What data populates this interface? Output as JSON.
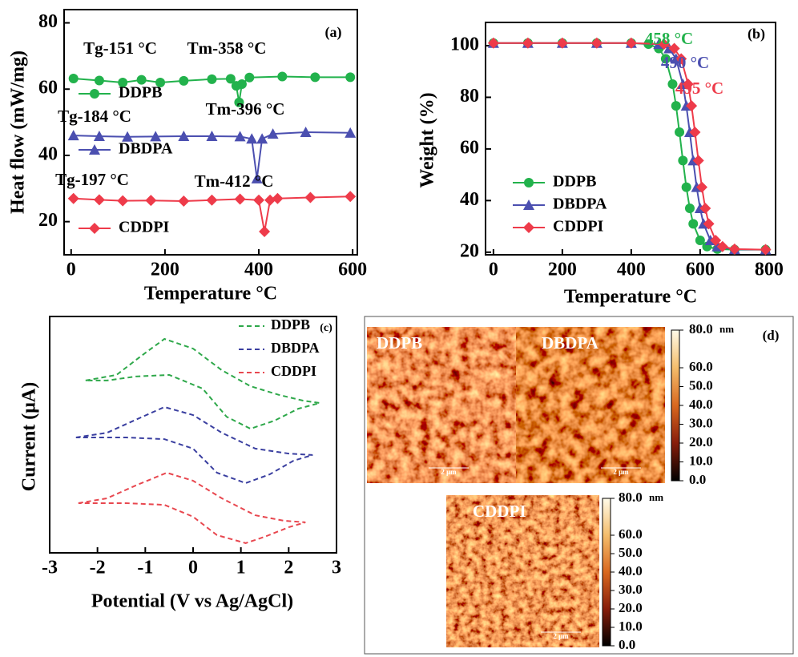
{
  "chart_data": [
    {
      "type": "line",
      "panel_label": "(a)",
      "xlabel": "Temperature °C",
      "ylabel": "Heat flow (mW/mg)",
      "xlim": [
        -15,
        610
      ],
      "xticks": [
        0,
        200,
        400,
        600
      ],
      "ylim": [
        10,
        84
      ],
      "yticks": [
        20,
        40,
        60,
        80
      ],
      "linestyle": "solid",
      "annotations": [
        {
          "text": "Tg-151 °C"
        },
        {
          "text": "Tm-358 °C"
        },
        {
          "text": "Tg-184 °C"
        },
        {
          "text": "Tm-396 °C"
        },
        {
          "text": "Tg-197 °C"
        },
        {
          "text": "Tm-412 °C"
        }
      ],
      "series": [
        {
          "name": "DDPB",
          "color": "#22b24c",
          "marker": "circle",
          "x": [
            5,
            60,
            110,
            150,
            190,
            240,
            300,
            340,
            352,
            358,
            364,
            380,
            450,
            520,
            595
          ],
          "values": [
            63.2,
            62.6,
            62.0,
            62.8,
            62.0,
            62.5,
            63.0,
            63.1,
            61,
            56,
            61.5,
            63.5,
            63.8,
            63.6,
            63.6
          ]
        },
        {
          "name": "DBDPA",
          "color": "#4b4fb0",
          "marker": "triangle",
          "x": [
            5,
            60,
            120,
            180,
            240,
            300,
            360,
            385,
            396,
            407,
            430,
            500,
            595
          ],
          "values": [
            46,
            45.8,
            45.6,
            45.7,
            45.8,
            45.8,
            45.7,
            45,
            33,
            45,
            46.5,
            47,
            46.8
          ]
        },
        {
          "name": "CDDPI",
          "color": "#ee3b4a",
          "marker": "diamond",
          "x": [
            5,
            60,
            110,
            170,
            240,
            300,
            360,
            400,
            412,
            424,
            440,
            510,
            595
          ],
          "values": [
            27,
            26.6,
            26.3,
            26.4,
            26.2,
            26.5,
            26.8,
            26.5,
            17,
            26.5,
            27,
            27.3,
            27.6
          ]
        }
      ]
    },
    {
      "type": "line",
      "panel_label": "(b)",
      "xlabel": "Temperature °C",
      "ylabel": "Weight (%)",
      "xlim": [
        -23,
        819
      ],
      "xticks": [
        0,
        200,
        400,
        600,
        800
      ],
      "ylim": [
        19,
        109
      ],
      "yticks": [
        20,
        40,
        60,
        80,
        100
      ],
      "linestyle": "solid",
      "annotations": [
        {
          "text": "458 °C",
          "color": "#22b24c"
        },
        {
          "text": "490 °C",
          "color": "#4b4fb0"
        },
        {
          "text": "495 °C",
          "color": "#ee3b4a"
        }
      ],
      "series": [
        {
          "name": "DDPB",
          "color": "#22b24c",
          "marker": "circle",
          "x": [
            0,
            100,
            200,
            300,
            400,
            450,
            480,
            500,
            520,
            530,
            540,
            550,
            560,
            570,
            580,
            600,
            620,
            650,
            700,
            790
          ],
          "values": [
            101,
            101,
            101,
            101,
            101,
            100.6,
            98.9,
            94.9,
            85.1,
            76.7,
            66.5,
            55.5,
            45.2,
            37.0,
            31.0,
            24.6,
            22.2,
            21.2,
            21,
            21
          ]
        },
        {
          "name": "DBDPA",
          "color": "#4b4fb0",
          "marker": "triangle",
          "x": [
            0,
            100,
            200,
            300,
            400,
            480,
            510,
            530,
            550,
            560,
            570,
            580,
            590,
            600,
            610,
            630,
            650,
            700,
            790
          ],
          "values": [
            101,
            101,
            101,
            101,
            101,
            100.6,
            98.9,
            94.9,
            85.1,
            76.7,
            66.5,
            55.5,
            45.2,
            37.0,
            31.0,
            24.6,
            22.2,
            21.1,
            21
          ]
        },
        {
          "name": "CDDPI",
          "color": "#ee3b4a",
          "marker": "diamond",
          "x": [
            0,
            100,
            200,
            300,
            400,
            495,
            525,
            545,
            565,
            575,
            585,
            595,
            605,
            615,
            625,
            645,
            665,
            700,
            790
          ],
          "values": [
            101,
            101,
            101,
            101,
            101,
            100.6,
            98.9,
            94.9,
            85.1,
            76.7,
            66.5,
            55.5,
            45.2,
            37.0,
            31.0,
            24.6,
            22.2,
            21.2,
            21
          ]
        }
      ]
    },
    {
      "type": "line",
      "panel_label": "(c)",
      "xlabel": "Potential (V vs Ag/AgCl)",
      "ylabel": "Current (μA)",
      "xlim": [
        -3,
        3
      ],
      "xticks": [
        -3,
        -2,
        -1,
        0,
        1,
        2,
        3
      ],
      "ylim": [
        0,
        100
      ],
      "linestyle": "dashed",
      "series": [
        {
          "name": "DDPB",
          "color": "#2ea84a",
          "x": [
            -2.25,
            -1.6,
            -1.1,
            -0.6,
            0.0,
            0.6,
            1.2,
            1.8,
            2.3,
            2.65,
            2.2,
            1.7,
            1.2,
            0.7,
            0.2,
            -0.5,
            -1.2,
            -1.8,
            -2.25
          ],
          "values": [
            72.9,
            75.3,
            83.1,
            90.5,
            86.4,
            77.3,
            70.5,
            66.8,
            64.4,
            63.4,
            61.0,
            55.9,
            52.5,
            57.6,
            69.5,
            75.3,
            74.6,
            72.9,
            72.9
          ]
        },
        {
          "name": "DBDPA",
          "color": "#3a3fa0",
          "x": [
            -2.45,
            -1.8,
            -1.2,
            -0.6,
            0,
            0.6,
            1.3,
            2,
            2.5,
            2.1,
            1.6,
            1.1,
            0.5,
            0,
            -0.6,
            -1.4,
            -2.45
          ],
          "values": [
            48.8,
            50.8,
            56.3,
            61.7,
            58.3,
            50.8,
            44.1,
            42.0,
            41.4,
            39.0,
            33.2,
            29.5,
            33.9,
            44.1,
            48.1,
            48.8,
            48.8
          ]
        },
        {
          "name": "CDDPI",
          "color": "#e8474f",
          "x": [
            -2.4,
            -1.8,
            -1.2,
            -0.55,
            0,
            0.6,
            1.3,
            1.9,
            2.35,
            2,
            1.5,
            1.1,
            0.5,
            0,
            -0.6,
            -1.4,
            -2.4
          ],
          "values": [
            21.0,
            23.1,
            28.5,
            33.9,
            30.5,
            23.1,
            15.9,
            13.6,
            12.9,
            10.8,
            6.8,
            4.1,
            7.5,
            15.3,
            20.3,
            21.0,
            21.0
          ]
        }
      ]
    }
  ],
  "afm_panel": {
    "label": "(d)",
    "images": [
      {
        "label": "DDPB",
        "scale_bar": "2 μm"
      },
      {
        "label": "DBDPA",
        "scale_bar": "2 μm"
      },
      {
        "label": "CDDPI",
        "scale_bar": "2 μm"
      }
    ],
    "colorbars": [
      {
        "unit": "nm",
        "ticks": [
          {
            "value": 80,
            "label": "80.0"
          },
          {
            "value": 60,
            "label": "60.0"
          },
          {
            "value": 50,
            "label": "50.0"
          },
          {
            "value": 40,
            "label": "40.0"
          },
          {
            "value": 30,
            "label": "30.0"
          },
          {
            "value": 20,
            "label": "20.0"
          },
          {
            "value": 10,
            "label": "10.0"
          },
          {
            "value": 0,
            "label": "0.0"
          }
        ]
      },
      {
        "unit": "nm",
        "ticks": [
          {
            "value": 80,
            "label": "80.0"
          },
          {
            "value": 60,
            "label": "60.0"
          },
          {
            "value": 50,
            "label": "50.0"
          },
          {
            "value": 40,
            "label": "40.0"
          },
          {
            "value": 30,
            "label": "30.0"
          },
          {
            "value": 20,
            "label": "20.0"
          },
          {
            "value": 10,
            "label": "10.0"
          },
          {
            "value": 0,
            "label": "0.0"
          }
        ]
      }
    ]
  }
}
